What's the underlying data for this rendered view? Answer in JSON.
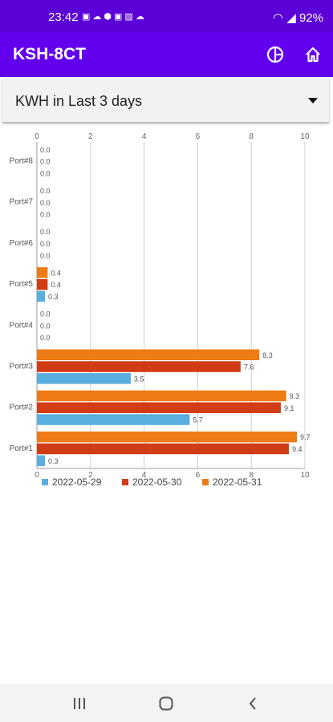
{
  "status_bar": {
    "time": "23:42",
    "notification_icons": [
      "message-icon",
      "cloud-icon",
      "shield-icon",
      "screenshot-icon",
      "image-icon",
      "cloud-icon"
    ],
    "wifi_icon": "wifi-icon",
    "signal_icon": "signal-icon",
    "battery": "92%"
  },
  "app_bar": {
    "title": "KSH-8CT",
    "actions": [
      {
        "icon": "pie-chart-icon"
      },
      {
        "icon": "home-icon"
      }
    ]
  },
  "selector": {
    "selected": "KWH in Last 3 days"
  },
  "chart_data": {
    "type": "bar",
    "orientation": "horizontal",
    "categories": [
      "Port#1",
      "Port#2",
      "Port#3",
      "Port#4",
      "Port#5",
      "Port#6",
      "Port#7",
      "Port#8"
    ],
    "series": [
      {
        "name": "2022-05-29",
        "color": "#5aaee0",
        "values": [
          0.3,
          5.7,
          3.5,
          0.0,
          0.3,
          0.0,
          0.0,
          0.0
        ],
        "labels": [
          "0.3",
          "5.7",
          "3.5",
          "0.0",
          "0.3",
          "0.0",
          "0.0",
          "0.0"
        ]
      },
      {
        "name": "2022-05-30",
        "color": "#d23c14",
        "values": [
          9.4,
          9.1,
          7.6,
          0.0,
          0.4,
          0.0,
          0.0,
          0.0
        ],
        "labels": [
          "9.4",
          "9.1",
          "7.6",
          "0.0",
          "0.4",
          "0.0",
          "0.0",
          "0.0"
        ]
      },
      {
        "name": "2022-05-31",
        "color": "#ee7b13",
        "values": [
          9.7,
          9.3,
          8.3,
          0.0,
          0.4,
          0.0,
          0.0,
          0.0
        ],
        "labels": [
          "9.7",
          "9.3",
          "8.3",
          "0.0",
          "0.4",
          "0.0",
          "0.0",
          "0.0"
        ]
      }
    ],
    "xlim": [
      0,
      10
    ],
    "xticks": [
      "0",
      "2",
      "4",
      "6",
      "8",
      "10"
    ],
    "grid": true,
    "legend_position": "bottom-left"
  },
  "nav_bar": {
    "buttons": [
      "recent-apps-icon",
      "home-circle-icon",
      "back-icon"
    ]
  }
}
